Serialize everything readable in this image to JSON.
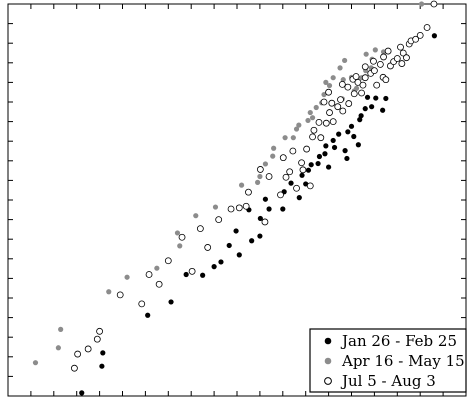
{
  "chart_data": {
    "type": "scatter",
    "title": "",
    "xlabel": "",
    "ylabel": "",
    "xlim": [
      0,
      100
    ],
    "ylim": [
      0,
      100
    ],
    "grid": false,
    "legend_position": "bottom-right",
    "colors": {
      "filled_black": "#000000",
      "filled_gray": "#8c8c8c",
      "open_black": "#000000"
    },
    "series": [
      {
        "name": "Jan 26 - Feb 25",
        "marker": "filled-black",
        "points": [
          [
            16.1,
            0.8
          ],
          [
            20.5,
            7.6
          ],
          [
            20.7,
            11.0
          ],
          [
            30.5,
            20.6
          ],
          [
            35.6,
            24.0
          ],
          [
            38.9,
            31.0
          ],
          [
            42.5,
            30.8
          ],
          [
            45.0,
            33.0
          ],
          [
            46.5,
            34.2
          ],
          [
            50.5,
            36.0
          ],
          [
            48.3,
            38.4
          ],
          [
            49.8,
            42.1
          ],
          [
            53.2,
            39.6
          ],
          [
            55.0,
            40.8
          ],
          [
            55.1,
            45.3
          ],
          [
            57.0,
            47.7
          ],
          [
            52.6,
            47.5
          ],
          [
            56.2,
            50.2
          ],
          [
            60.0,
            47.7
          ],
          [
            60.3,
            52.1
          ],
          [
            63.6,
            50.6
          ],
          [
            61.8,
            54.3
          ],
          [
            65.0,
            54.1
          ],
          [
            64.2,
            56.3
          ],
          [
            65.6,
            57.6
          ],
          [
            66.2,
            59.0
          ],
          [
            67.7,
            59.3
          ],
          [
            68.0,
            61.1
          ],
          [
            69.2,
            61.8
          ],
          [
            70.0,
            58.4
          ],
          [
            69.4,
            63.8
          ],
          [
            71.3,
            63.4
          ],
          [
            71.0,
            65.2
          ],
          [
            72.2,
            66.8
          ],
          [
            73.6,
            62.6
          ],
          [
            74.2,
            67.4
          ],
          [
            75.5,
            66.2
          ],
          [
            75.0,
            68.8
          ],
          [
            76.8,
            70.5
          ],
          [
            77.1,
            71.5
          ],
          [
            78.0,
            73.3
          ],
          [
            79.4,
            73.8
          ],
          [
            76.5,
            64.1
          ],
          [
            81.8,
            72.9
          ],
          [
            82.5,
            75.9
          ],
          [
            78.5,
            76.2
          ],
          [
            80.3,
            76.0
          ],
          [
            74.0,
            60.6
          ],
          [
            93.1,
            91.9
          ]
        ]
      },
      {
        "name": "Apr 16 - May 15",
        "marker": "filled-gray",
        "points": [
          [
            6.0,
            8.5
          ],
          [
            11.0,
            12.3
          ],
          [
            11.5,
            17.0
          ],
          [
            22.0,
            26.6
          ],
          [
            26.0,
            30.3
          ],
          [
            32.5,
            32.6
          ],
          [
            37.5,
            38.3
          ],
          [
            37.0,
            41.6
          ],
          [
            41.0,
            46.0
          ],
          [
            45.3,
            48.2
          ],
          [
            51.0,
            53.8
          ],
          [
            54.5,
            54.5
          ],
          [
            55.0,
            56.0
          ],
          [
            56.2,
            59.2
          ],
          [
            57.8,
            61.2
          ],
          [
            58.0,
            63.2
          ],
          [
            60.5,
            65.9
          ],
          [
            62.3,
            65.9
          ],
          [
            63.0,
            68.1
          ],
          [
            63.5,
            69.1
          ],
          [
            65.5,
            70.3
          ],
          [
            66.0,
            72.3
          ],
          [
            66.5,
            71.0
          ],
          [
            67.3,
            73.6
          ],
          [
            68.5,
            74.8
          ],
          [
            69.0,
            76.9
          ],
          [
            69.4,
            80.0
          ],
          [
            70.2,
            79.2
          ],
          [
            71.0,
            81.2
          ],
          [
            73.0,
            75.8
          ],
          [
            72.5,
            83.7
          ],
          [
            73.2,
            80.7
          ],
          [
            75.0,
            81.3
          ],
          [
            75.6,
            77.8
          ],
          [
            76.1,
            78.5
          ],
          [
            73.5,
            85.6
          ],
          [
            77.2,
            81.2
          ],
          [
            78.1,
            83.0
          ],
          [
            78.2,
            87.2
          ],
          [
            79.5,
            85.9
          ],
          [
            79.3,
            83.7
          ],
          [
            82.0,
            87.8
          ],
          [
            80.2,
            88.3
          ],
          [
            90.3,
            100.0
          ]
        ]
      },
      {
        "name": "Jul 5 - Aug 3",
        "marker": "open-black",
        "points": [
          [
            14.5,
            7.1
          ],
          [
            15.2,
            10.7
          ],
          [
            19.5,
            14.5
          ],
          [
            29.2,
            23.5
          ],
          [
            33.0,
            28.5
          ],
          [
            40.2,
            31.8
          ],
          [
            43.6,
            37.9
          ],
          [
            42.0,
            42.7
          ],
          [
            48.7,
            47.7
          ],
          [
            50.5,
            48.0
          ],
          [
            52.0,
            48.4
          ],
          [
            56.1,
            44.4
          ],
          [
            59.5,
            51.3
          ],
          [
            60.7,
            55.8
          ],
          [
            61.5,
            57.2
          ],
          [
            63.0,
            53.0
          ],
          [
            64.4,
            57.7
          ],
          [
            64.1,
            59.5
          ],
          [
            66.0,
            53.6
          ],
          [
            65.2,
            63.0
          ],
          [
            66.5,
            66.1
          ],
          [
            68.3,
            65.9
          ],
          [
            67.9,
            69.8
          ],
          [
            69.5,
            69.6
          ],
          [
            70.2,
            72.3
          ],
          [
            71.0,
            70.0
          ],
          [
            70.7,
            74.7
          ],
          [
            72.0,
            73.8
          ],
          [
            72.6,
            75.6
          ],
          [
            73.1,
            72.7
          ],
          [
            74.2,
            78.8
          ],
          [
            74.4,
            74.6
          ],
          [
            75.3,
            80.8
          ],
          [
            75.6,
            77.1
          ],
          [
            76.4,
            80.0
          ],
          [
            77.2,
            77.3
          ],
          [
            77.5,
            79.3
          ],
          [
            78.0,
            81.2
          ],
          [
            79.2,
            82.3
          ],
          [
            80.5,
            79.3
          ],
          [
            80.0,
            83.0
          ],
          [
            81.3,
            84.6
          ],
          [
            81.9,
            81.3
          ],
          [
            82.5,
            80.7
          ],
          [
            83.5,
            84.2
          ],
          [
            84.2,
            85.3
          ],
          [
            85.0,
            86.1
          ],
          [
            86.0,
            84.8
          ],
          [
            86.3,
            87.5
          ],
          [
            87.0,
            86.3
          ],
          [
            78.0,
            84.0
          ],
          [
            79.8,
            85.4
          ],
          [
            82.0,
            86.5
          ],
          [
            85.7,
            89.0
          ],
          [
            87.6,
            89.8
          ],
          [
            88.0,
            90.6
          ],
          [
            90.0,
            92.0
          ],
          [
            91.5,
            94.0
          ],
          [
            93.0,
            100.0
          ],
          [
            89.0,
            91.0
          ],
          [
            83.0,
            88.0
          ],
          [
            76.0,
            81.5
          ],
          [
            73.0,
            79.5
          ],
          [
            69.0,
            75.0
          ],
          [
            70.0,
            77.5
          ],
          [
            66.8,
            67.8
          ],
          [
            62.2,
            62.5
          ],
          [
            60.1,
            60.8
          ],
          [
            57.0,
            56.0
          ],
          [
            55.1,
            57.8
          ],
          [
            52.5,
            52.0
          ],
          [
            46.0,
            45.0
          ],
          [
            38.0,
            40.5
          ],
          [
            35.0,
            34.5
          ],
          [
            30.8,
            31.0
          ],
          [
            24.5,
            25.8
          ],
          [
            20.0,
            16.5
          ],
          [
            17.5,
            12.0
          ]
        ]
      }
    ]
  }
}
